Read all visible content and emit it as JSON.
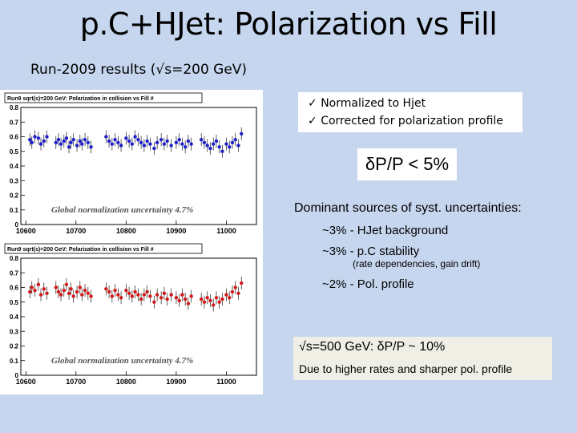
{
  "slide": {
    "title": "p.C+HJet: Polarization vs Fill",
    "subtitle": "Run-2009 results (√s=200 GeV)"
  },
  "notes": {
    "check_mark": "✓",
    "items": [
      "Normalized to Hjet",
      "Corrected for polarization profile"
    ]
  },
  "delta": {
    "label": "δP/P < 5%"
  },
  "systematics": {
    "heading": "Dominant sources of syst. uncertainties:",
    "items": [
      {
        "text": "~3% - HJet background"
      },
      {
        "text": "~3% - p.C stability",
        "sub": "(rate dependencies, gain drift)"
      },
      {
        "text": "~2% - Pol. profile"
      }
    ]
  },
  "high_energy": {
    "line1": "√s=500 GeV: δP/P ~ 10%",
    "line2": "Due to higher rates and sharper pol. profile"
  },
  "chart_data": [
    {
      "type": "scatter",
      "id": "top",
      "title": "Run9 sqrt(s)=200 GeV: Polarization in collision vs Fill #",
      "annotation": "Global normalization uncertainty 4.7%",
      "xlabel": "",
      "ylabel": "",
      "xlim": [
        10590,
        11060
      ],
      "ylim": [
        0,
        0.8
      ],
      "xticks": [
        "10600",
        "10700",
        "10800",
        "10900",
        "11000"
      ],
      "yticks": [
        "0",
        "0.1",
        "0.2",
        "0.3",
        "0.4",
        "0.5",
        "0.6",
        "0.7",
        "0.8"
      ],
      "color": "#1f1fcc",
      "series": [
        {
          "name": "polarization",
          "x": [
            10608,
            10612,
            10618,
            10625,
            10630,
            10636,
            10642,
            10660,
            10665,
            10670,
            10676,
            10681,
            10686,
            10690,
            10695,
            10702,
            10708,
            10712,
            10718,
            10724,
            10730,
            10760,
            10766,
            10772,
            10778,
            10784,
            10790,
            10800,
            10806,
            10812,
            10818,
            10824,
            10830,
            10836,
            10842,
            10848,
            10856,
            10862,
            10870,
            10876,
            10882,
            10890,
            10900,
            10906,
            10912,
            10918,
            10924,
            10930,
            10950,
            10956,
            10962,
            10968,
            10974,
            10980,
            10986,
            10992,
            11000,
            11006,
            11012,
            11018,
            11024,
            11030
          ],
          "y": [
            0.58,
            0.56,
            0.6,
            0.59,
            0.55,
            0.57,
            0.6,
            0.56,
            0.58,
            0.55,
            0.57,
            0.59,
            0.53,
            0.56,
            0.58,
            0.54,
            0.57,
            0.55,
            0.58,
            0.56,
            0.53,
            0.6,
            0.57,
            0.55,
            0.58,
            0.56,
            0.54,
            0.59,
            0.57,
            0.55,
            0.6,
            0.58,
            0.56,
            0.54,
            0.57,
            0.55,
            0.52,
            0.56,
            0.58,
            0.55,
            0.57,
            0.54,
            0.56,
            0.58,
            0.55,
            0.53,
            0.57,
            0.55,
            0.58,
            0.56,
            0.54,
            0.52,
            0.55,
            0.57,
            0.53,
            0.5,
            0.55,
            0.53,
            0.56,
            0.58,
            0.54,
            0.62
          ]
        }
      ]
    },
    {
      "type": "scatter",
      "id": "bottom",
      "title": "Run9 sqrt(s)=200 GeV: Polarization in collision vs Fill #",
      "annotation": "Global normalization uncertainty 4.7%",
      "xlabel": "",
      "ylabel": "",
      "xlim": [
        10590,
        11060
      ],
      "ylim": [
        0,
        0.8
      ],
      "xticks": [
        "10600",
        "10700",
        "10800",
        "10900",
        "11000"
      ],
      "yticks": [
        "0",
        "0.1",
        "0.2",
        "0.3",
        "0.4",
        "0.5",
        "0.6",
        "0.7",
        "0.8"
      ],
      "color": "#d01818",
      "series": [
        {
          "name": "polarization",
          "x": [
            10608,
            10612,
            10618,
            10625,
            10630,
            10636,
            10642,
            10660,
            10665,
            10670,
            10676,
            10681,
            10686,
            10690,
            10695,
            10702,
            10708,
            10712,
            10718,
            10724,
            10730,
            10760,
            10766,
            10772,
            10778,
            10784,
            10790,
            10800,
            10806,
            10812,
            10818,
            10824,
            10830,
            10836,
            10842,
            10848,
            10856,
            10862,
            10870,
            10876,
            10882,
            10890,
            10900,
            10906,
            10912,
            10918,
            10924,
            10930,
            10950,
            10956,
            10962,
            10968,
            10974,
            10980,
            10986,
            10992,
            11000,
            11006,
            11012,
            11018,
            11024,
            11030
          ],
          "y": [
            0.57,
            0.6,
            0.58,
            0.62,
            0.55,
            0.59,
            0.56,
            0.6,
            0.57,
            0.55,
            0.58,
            0.62,
            0.56,
            0.59,
            0.54,
            0.57,
            0.6,
            0.55,
            0.58,
            0.56,
            0.54,
            0.59,
            0.57,
            0.54,
            0.58,
            0.55,
            0.53,
            0.58,
            0.56,
            0.54,
            0.57,
            0.55,
            0.52,
            0.55,
            0.57,
            0.54,
            0.5,
            0.55,
            0.53,
            0.56,
            0.52,
            0.55,
            0.53,
            0.51,
            0.55,
            0.52,
            0.49,
            0.54,
            0.52,
            0.5,
            0.53,
            0.51,
            0.48,
            0.53,
            0.5,
            0.52,
            0.55,
            0.53,
            0.57,
            0.6,
            0.56,
            0.63
          ]
        }
      ]
    }
  ]
}
